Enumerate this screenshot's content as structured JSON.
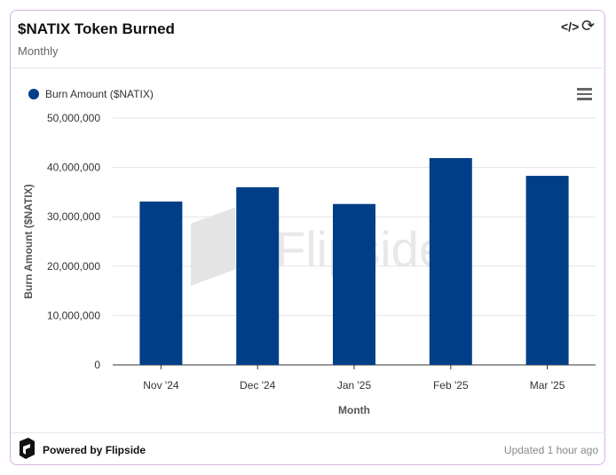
{
  "header": {
    "title": "$NATIX Token Burned",
    "subtitle": "Monthly",
    "icons": [
      "code-icon",
      "refresh-icon"
    ]
  },
  "footer": {
    "powered": "Powered by Flipside",
    "updated": "Updated 1 hour ago"
  },
  "watermark": "Flipside",
  "colors": {
    "bar": "#003f88",
    "border": "#d7b3e0"
  },
  "chart_data": {
    "type": "bar",
    "categories": [
      "Nov '24",
      "Dec '24",
      "Jan '25",
      "Feb '25",
      "Mar '25"
    ],
    "series": [
      {
        "name": "Burn Amount ($NATIX)",
        "values": [
          33100000,
          36000000,
          32600000,
          41900000,
          38300000
        ]
      }
    ],
    "xlabel": "Month",
    "ylabel": "Burn Amount ($NATIX)",
    "ylim": [
      0,
      50000000
    ],
    "yticks": [
      "0",
      "10,000,000",
      "20,000,000",
      "30,000,000",
      "40,000,000",
      "50,000,000"
    ],
    "grid": true,
    "legend": "top-left"
  }
}
